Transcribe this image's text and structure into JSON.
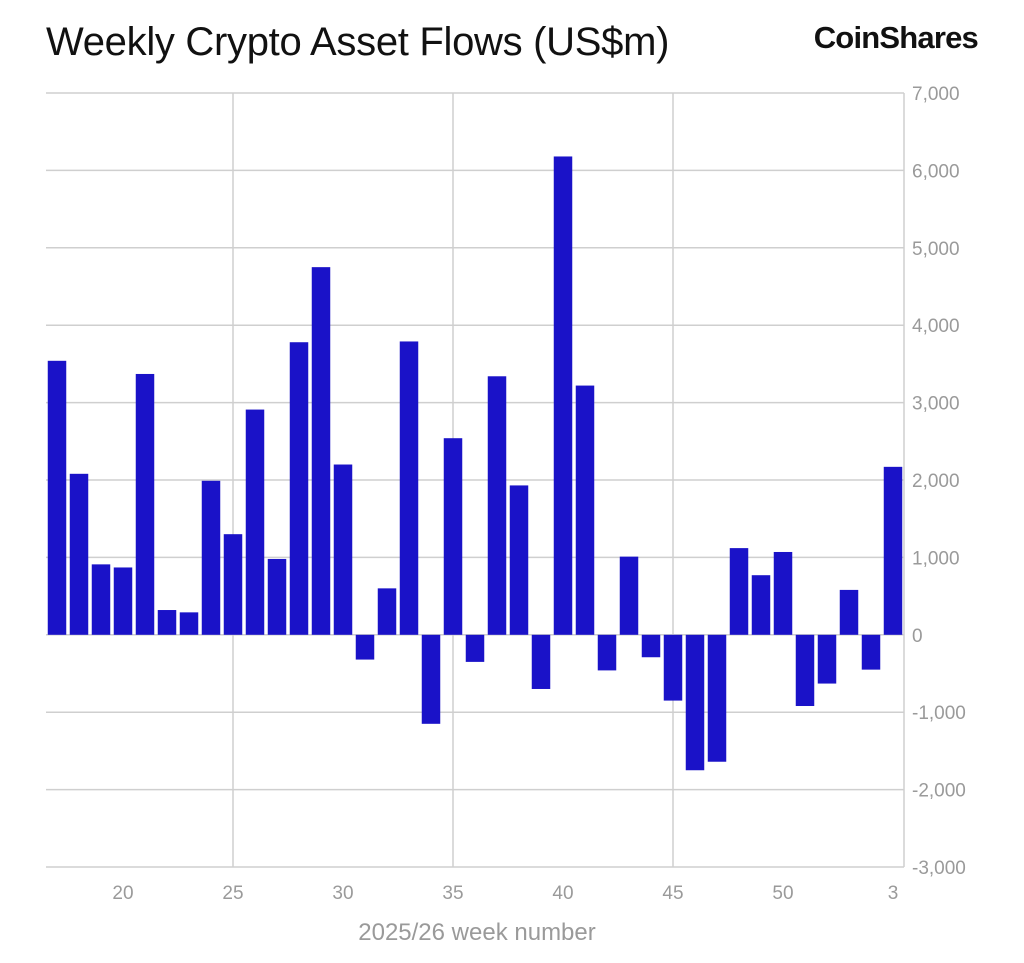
{
  "header": {
    "title": "Weekly Crypto Asset Flows (US$m)",
    "logo_text": "CoinShares"
  },
  "colors": {
    "bar": "#1a12c8",
    "grid": "#cfcfcf",
    "tick_text": "#9a9a9a",
    "title_text": "#111111"
  },
  "chart_data": {
    "type": "bar",
    "title": "Weekly Crypto Asset Flows (US$m)",
    "xlabel": "2025/26 week number",
    "ylabel": "",
    "ylim": [
      -3000,
      7000
    ],
    "y_ticks": [
      -3000,
      -2000,
      -1000,
      0,
      1000,
      2000,
      3000,
      4000,
      5000,
      6000,
      7000
    ],
    "y_tick_labels": [
      "-3,000",
      "-2,000",
      "-1,000",
      "0",
      "1,000",
      "2,000",
      "3,000",
      "4,000",
      "5,000",
      "6,000",
      "7,000"
    ],
    "y_axis_side": "right",
    "grid": true,
    "legend": "none",
    "x_tick_labels": [
      {
        "category": "20",
        "label": "20"
      },
      {
        "category": "25",
        "label": "25"
      },
      {
        "category": "30",
        "label": "30"
      },
      {
        "category": "35",
        "label": "35"
      },
      {
        "category": "40",
        "label": "40"
      },
      {
        "category": "45",
        "label": "45"
      },
      {
        "category": "50",
        "label": "50"
      },
      {
        "category": "3",
        "label": "3"
      }
    ],
    "vertical_gridlines_at": [
      "25",
      "35",
      "45"
    ],
    "categories": [
      "17",
      "18",
      "19",
      "20",
      "21",
      "22",
      "23",
      "24",
      "25",
      "26",
      "27",
      "28",
      "29",
      "30",
      "31",
      "32",
      "33",
      "34",
      "35",
      "36",
      "37",
      "38",
      "39",
      "40",
      "41",
      "42",
      "43",
      "44",
      "45",
      "46",
      "47",
      "48",
      "49",
      "50",
      "51",
      "52",
      "1",
      "2",
      "3"
    ],
    "series": [
      {
        "values": [
          3540,
          2080,
          910,
          870,
          3370,
          320,
          290,
          1990,
          1300,
          2910,
          980,
          3780,
          4750,
          2200,
          -320,
          600,
          3790,
          -1150,
          2540,
          -350,
          3340,
          1930,
          -700,
          6180,
          3220,
          -460,
          1010,
          -290,
          -850,
          -1750,
          -1640,
          1120,
          770,
          1070,
          -920,
          -630,
          580,
          -450,
          2170
        ]
      }
    ]
  }
}
